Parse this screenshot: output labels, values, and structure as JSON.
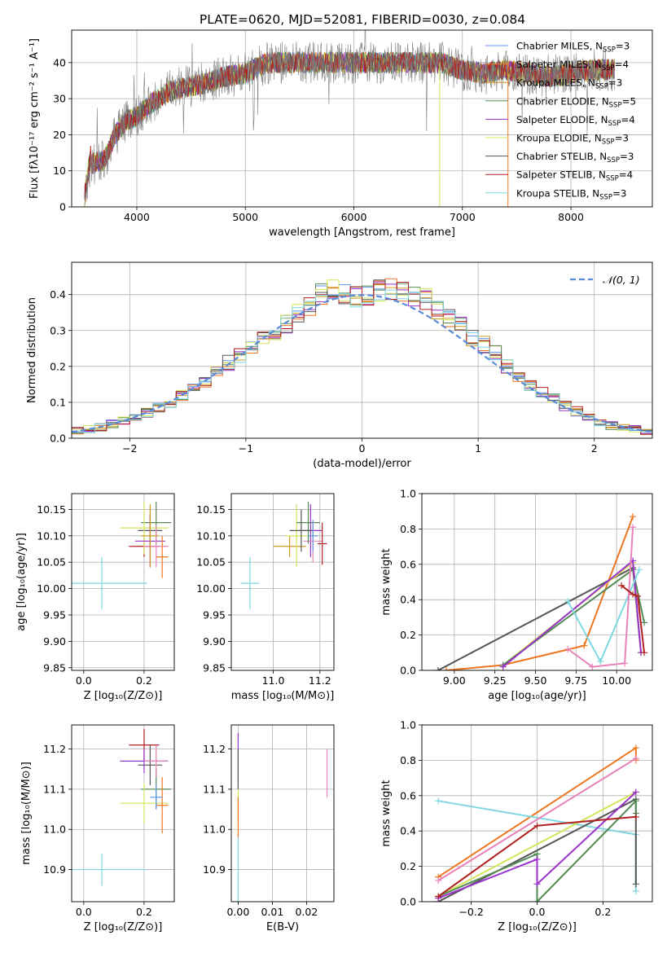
{
  "title": "PLATE=0620, MJD=52081, FIBERID=0030, z=0.084",
  "colors": {
    "Chabrier MILES": "#6495ed",
    "Salpeter MILES": "#ee7621",
    "Kroupa MILES": "#cd9b1d",
    "Chabrier ELODIE": "#548b54",
    "Salpeter ELODIE": "#9a32cd",
    "Kroupa ELODIE": "#d4e55a",
    "Chabrier STELIB": "#555555",
    "Salpeter STELIB": "#b22222",
    "Kroupa STELIB": "#7fd8e0",
    "Kroupa ELODIE pink": "#e882b8",
    "normal_curve": "#5b8bd8"
  },
  "chart_data": [
    {
      "id": "spectrum",
      "type": "line",
      "xlabel": "wavelength [Angstrom, rest frame]",
      "ylabel": "Flux [fλ10⁻¹⁷ erg cm⁻² s⁻¹ A⁻¹]",
      "xlim": [
        3400,
        8750
      ],
      "ylim": [
        0,
        49
      ],
      "xticks": [
        4000,
        5000,
        6000,
        7000,
        8000
      ],
      "yticks": [
        0,
        10,
        20,
        30,
        40
      ],
      "legend_location": "top-right",
      "series": [
        {
          "name": "Chabrier MILES, N_SSP=3",
          "label_main": "Chabrier MILES, N",
          "label_sub": "SSP",
          "label_end": "=3",
          "color": "#6495ed"
        },
        {
          "name": "Salpeter MILES, N_SSP=4",
          "label_main": "Salpeter MILES, N",
          "label_sub": "SSP",
          "label_end": "=4",
          "color": "#ee7621"
        },
        {
          "name": "Kroupa MILES, N_SSP=3",
          "label_main": "Kroupa MILES, N",
          "label_sub": "SSP",
          "label_end": "=3",
          "color": "#cd9b1d"
        },
        {
          "name": "Chabrier ELODIE, N_SSP=5",
          "label_main": "Chabrier ELODIE, N",
          "label_sub": "SSP",
          "label_end": "=5",
          "color": "#548b54"
        },
        {
          "name": "Salpeter ELODIE, N_SSP=4",
          "label_main": "Salpeter ELODIE, N",
          "label_sub": "SSP",
          "label_end": "=4",
          "color": "#9a32cd"
        },
        {
          "name": "Kroupa ELODIE, N_SSP=3",
          "label_main": "Kroupa ELODIE, N",
          "label_sub": "SSP",
          "label_end": "=3",
          "color": "#d4e55a"
        },
        {
          "name": "Chabrier STELIB, N_SSP=3",
          "label_main": "Chabrier STELIB, N",
          "label_sub": "SSP",
          "label_end": "=3",
          "color": "#555555"
        },
        {
          "name": "Salpeter STELIB, N_SSP=4",
          "label_main": "Salpeter STELIB, N",
          "label_sub": "SSP",
          "label_end": "=4",
          "color": "#b22222"
        },
        {
          "name": "Kroupa STELIB, N_SSP=3",
          "label_main": "Kroupa STELIB, N",
          "label_sub": "SSP",
          "label_end": "=3",
          "color": "#7fd8e0"
        }
      ],
      "data_envelope": [
        [
          3520,
          0
        ],
        [
          3580,
          12
        ],
        [
          3700,
          13
        ],
        [
          3800,
          20
        ],
        [
          3900,
          24
        ],
        [
          4000,
          25
        ],
        [
          4100,
          28
        ],
        [
          4200,
          30
        ],
        [
          4300,
          32
        ],
        [
          4400,
          33
        ],
        [
          4600,
          34
        ],
        [
          4800,
          36
        ],
        [
          5000,
          37
        ],
        [
          5200,
          40
        ],
        [
          5400,
          40
        ],
        [
          5600,
          40
        ],
        [
          5800,
          40
        ],
        [
          6000,
          40
        ],
        [
          6200,
          40
        ],
        [
          6400,
          40
        ],
        [
          6600,
          40
        ],
        [
          6800,
          40
        ],
        [
          7000,
          38
        ],
        [
          7200,
          37
        ],
        [
          7400,
          38
        ],
        [
          7600,
          37
        ],
        [
          7800,
          36
        ],
        [
          8000,
          37
        ],
        [
          8200,
          38
        ],
        [
          8400,
          38
        ]
      ]
    },
    {
      "id": "residuals",
      "type": "histogram",
      "xlabel": "(data-model)/error",
      "ylabel": "Normed distribution",
      "xlim": [
        -2.5,
        2.5
      ],
      "ylim": [
        0,
        0.49
      ],
      "xticks": [
        -2,
        -1,
        0,
        1,
        2
      ],
      "yticks": [
        0.0,
        0.1,
        0.2,
        0.3,
        0.4
      ],
      "legend_location": "top-right",
      "normal_curve": {
        "name": "𝒩(0, 1)",
        "mean": 0,
        "sigma": 1
      },
      "bin_edges_start": -2.5,
      "bin_width": 0.1,
      "mean_hist": [
        0.02,
        0.025,
        0.03,
        0.04,
        0.05,
        0.06,
        0.07,
        0.085,
        0.1,
        0.12,
        0.14,
        0.16,
        0.18,
        0.21,
        0.23,
        0.26,
        0.28,
        0.3,
        0.32,
        0.35,
        0.37,
        0.4,
        0.41,
        0.4,
        0.39,
        0.395,
        0.41,
        0.42,
        0.41,
        0.4,
        0.39,
        0.36,
        0.34,
        0.31,
        0.28,
        0.26,
        0.24,
        0.2,
        0.17,
        0.15,
        0.13,
        0.11,
        0.09,
        0.075,
        0.06,
        0.045,
        0.035,
        0.03,
        0.025,
        0.02
      ]
    },
    {
      "id": "age_vs_Z",
      "type": "errorbar",
      "xlabel": "Z [log₁₀(Z/Z⊙)]",
      "ylabel": "age  [log₁₀(age/yr)]",
      "xlim": [
        -0.04,
        0.3
      ],
      "ylim": [
        9.845,
        10.18
      ],
      "xticks": [
        0.0,
        0.2
      ],
      "yticks": [
        9.85,
        9.9,
        9.95,
        10.0,
        10.05,
        10.1,
        10.15
      ],
      "points": [
        {
          "x": 0.06,
          "y": 10.01,
          "xerr": 0.15,
          "yerr": 0.05,
          "color": "#7fd8e0"
        },
        {
          "x": 0.2,
          "y": 10.08,
          "xerr": 0.05,
          "yerr": 0.02,
          "color": "#b22222"
        },
        {
          "x": 0.22,
          "y": 10.11,
          "xerr": 0.04,
          "yerr": 0.03,
          "color": "#555555"
        },
        {
          "x": 0.24,
          "y": 10.125,
          "xerr": 0.05,
          "yerr": 0.04,
          "color": "#548b54"
        },
        {
          "x": 0.2,
          "y": 10.115,
          "xerr": 0.08,
          "yerr": 0.05,
          "color": "#d4e55a"
        },
        {
          "x": 0.22,
          "y": 10.09,
          "xerr": 0.05,
          "yerr": 0.05,
          "color": "#9a32cd"
        },
        {
          "x": 0.24,
          "y": 10.08,
          "xerr": 0.04,
          "yerr": 0.04,
          "color": "#e882b8"
        },
        {
          "x": 0.26,
          "y": 10.06,
          "xerr": 0.02,
          "yerr": 0.04,
          "color": "#ee7621"
        },
        {
          "x": 0.22,
          "y": 10.1,
          "xerr": 0.03,
          "yerr": 0.06,
          "color": "#cd9b1d"
        }
      ]
    },
    {
      "id": "age_vs_mass",
      "type": "errorbar",
      "xlabel": "mass [log₁₀(M/M⊙)]",
      "ylabel": "",
      "xlim": [
        10.82,
        11.26
      ],
      "ylim": [
        9.845,
        10.18
      ],
      "xticks": [
        11.0,
        11.2
      ],
      "yticks": [
        9.85,
        9.9,
        9.95,
        10.0,
        10.05,
        10.1,
        10.15
      ],
      "points": [
        {
          "x": 10.9,
          "y": 10.01,
          "xerr": 0.04,
          "yerr": 0.05,
          "color": "#7fd8e0"
        },
        {
          "x": 11.07,
          "y": 10.08,
          "xerr": 0.07,
          "yerr": 0.02,
          "color": "#cd9b1d"
        },
        {
          "x": 11.1,
          "y": 10.1,
          "xerr": 0.05,
          "yerr": 0.06,
          "color": "#d4e55a"
        },
        {
          "x": 11.16,
          "y": 10.11,
          "xerr": 0.05,
          "yerr": 0.05,
          "color": "#9a32cd"
        },
        {
          "x": 11.17,
          "y": 10.09,
          "xerr": 0.04,
          "yerr": 0.04,
          "color": "#e882b8"
        },
        {
          "x": 11.15,
          "y": 10.125,
          "xerr": 0.05,
          "yerr": 0.04,
          "color": "#548b54"
        },
        {
          "x": 11.12,
          "y": 10.11,
          "xerr": 0.05,
          "yerr": 0.04,
          "color": "#555555"
        },
        {
          "x": 11.21,
          "y": 10.085,
          "xerr": 0.02,
          "yerr": 0.04,
          "color": "#b22222"
        },
        {
          "x": 11.17,
          "y": 10.1,
          "xerr": 0.02,
          "yerr": 0.03,
          "color": "#6495ed"
        }
      ]
    },
    {
      "id": "mass_weight_vs_age",
      "type": "line",
      "xlabel": "age  [log₁₀(age/yr)]",
      "ylabel": "mass weight",
      "xlim": [
        8.8,
        10.22
      ],
      "ylim": [
        0,
        1.0
      ],
      "xticks": [
        9.0,
        9.25,
        9.5,
        9.75,
        10.0
      ],
      "yticks": [
        0.0,
        0.2,
        0.4,
        0.6,
        0.8,
        1.0
      ],
      "series": [
        {
          "color": "#555555",
          "x": [
            8.9,
            10.1,
            10.15
          ],
          "y": [
            0.0,
            0.58,
            0.1
          ]
        },
        {
          "color": "#ee7621",
          "x": [
            8.95,
            9.3,
            9.8,
            10.1
          ],
          "y": [
            0.0,
            0.03,
            0.14,
            0.87
          ]
        },
        {
          "color": "#d4e55a",
          "x": [
            9.3,
            10.1,
            10.15
          ],
          "y": [
            0.03,
            0.61,
            0.1
          ]
        },
        {
          "color": "#548b54",
          "x": [
            9.3,
            10.1,
            10.17
          ],
          "y": [
            0.03,
            0.57,
            0.27
          ]
        },
        {
          "color": "#9a32cd",
          "x": [
            9.3,
            10.1,
            10.15
          ],
          "y": [
            0.02,
            0.62,
            0.1
          ]
        },
        {
          "color": "#7fd8e0",
          "x": [
            9.7,
            9.9,
            10.14
          ],
          "y": [
            0.39,
            0.05,
            0.57
          ]
        },
        {
          "color": "#e882b8",
          "x": [
            9.7,
            9.85,
            10.05,
            10.1
          ],
          "y": [
            0.12,
            0.02,
            0.04,
            0.81
          ]
        },
        {
          "color": "#b22222",
          "x": [
            10.03,
            10.1,
            10.13,
            10.17
          ],
          "y": [
            0.48,
            0.43,
            0.42,
            0.1
          ]
        }
      ]
    },
    {
      "id": "mass_vs_Z",
      "type": "errorbar",
      "xlabel": "Z [log₁₀(Z/Z⊙)]",
      "ylabel": "mass [log₁₀(M/M⊙)]",
      "xlim": [
        -0.04,
        0.3
      ],
      "ylim": [
        10.82,
        11.26
      ],
      "xticks": [
        0.0,
        0.2
      ],
      "yticks": [
        10.9,
        11.0,
        11.1,
        11.2
      ],
      "points": [
        {
          "x": 0.06,
          "y": 10.9,
          "xerr": 0.15,
          "yerr": 0.04,
          "color": "#7fd8e0"
        },
        {
          "x": 0.2,
          "y": 11.21,
          "xerr": 0.05,
          "yerr": 0.04,
          "color": "#b22222"
        },
        {
          "x": 0.2,
          "y": 11.17,
          "xerr": 0.08,
          "yerr": 0.03,
          "color": "#9a32cd"
        },
        {
          "x": 0.22,
          "y": 11.16,
          "xerr": 0.04,
          "yerr": 0.05,
          "color": "#555555"
        },
        {
          "x": 0.24,
          "y": 11.1,
          "xerr": 0.05,
          "yerr": 0.05,
          "color": "#548b54"
        },
        {
          "x": 0.2,
          "y": 11.065,
          "xerr": 0.08,
          "yerr": 0.05,
          "color": "#d4e55a"
        },
        {
          "x": 0.24,
          "y": 11.17,
          "xerr": 0.04,
          "yerr": 0.04,
          "color": "#e882b8"
        },
        {
          "x": 0.26,
          "y": 11.06,
          "xerr": 0.02,
          "yerr": 0.07,
          "color": "#ee7621"
        },
        {
          "x": 0.24,
          "y": 11.08,
          "xerr": 0.02,
          "yerr": 0.03,
          "color": "#6495ed"
        }
      ]
    },
    {
      "id": "mass_vs_ebv",
      "type": "errorbar",
      "xlabel": "E(B-V)",
      "ylabel": "",
      "xlim": [
        -0.002,
        0.028
      ],
      "ylim": [
        10.82,
        11.26
      ],
      "xticks": [
        0.0,
        0.01,
        0.02
      ],
      "yticks": [
        10.9,
        11.0,
        11.1,
        11.2
      ],
      "points": [
        {
          "x": 0.0,
          "y": 10.9,
          "xerr": 0.0,
          "yerr": 0.08,
          "color": "#7fd8e0"
        },
        {
          "x": 0.0,
          "y": 11.18,
          "xerr": 0.0,
          "yerr": 0.06,
          "color": "#9a32cd"
        },
        {
          "x": 0.0,
          "y": 11.15,
          "xerr": 0.0,
          "yerr": 0.05,
          "color": "#555555"
        },
        {
          "x": 0.0,
          "y": 11.06,
          "xerr": 0.0,
          "yerr": 0.04,
          "color": "#d4e55a"
        },
        {
          "x": 0.0,
          "y": 11.03,
          "xerr": 0.0,
          "yerr": 0.05,
          "color": "#ee7621"
        },
        {
          "x": 0.026,
          "y": 11.14,
          "xerr": 0.0,
          "yerr": 0.06,
          "color": "#e882b8"
        }
      ]
    },
    {
      "id": "mass_weight_vs_Z",
      "type": "line",
      "xlabel": "Z [log₁₀(Z/Z⊙)]",
      "ylabel": "mass weight",
      "xlim": [
        -0.35,
        0.35
      ],
      "ylim": [
        0,
        1.0
      ],
      "xticks": [
        -0.2,
        0.0,
        0.2
      ],
      "yticks": [
        0.0,
        0.2,
        0.4,
        0.6,
        0.8,
        1.0
      ],
      "series": [
        {
          "color": "#ee7621",
          "x": [
            -0.3,
            0.3,
            0.3
          ],
          "y": [
            0.14,
            0.87,
            0.8
          ]
        },
        {
          "color": "#7fd8e0",
          "x": [
            -0.3,
            0.3,
            0.3
          ],
          "y": [
            0.57,
            0.38,
            0.06
          ]
        },
        {
          "color": "#d4e55a",
          "x": [
            -0.3,
            0.3
          ],
          "y": [
            0.03,
            0.62
          ]
        },
        {
          "color": "#555555",
          "x": [
            -0.3,
            0.3,
            0.3
          ],
          "y": [
            0.0,
            0.58,
            0.1
          ]
        },
        {
          "color": "#548b54",
          "x": [
            -0.3,
            0.0,
            0.0,
            0.3,
            0.3
          ],
          "y": [
            0.03,
            0.27,
            0.0,
            0.57,
            0.5
          ]
        },
        {
          "color": "#9a32cd",
          "x": [
            -0.3,
            0.0,
            0.0,
            0.3
          ],
          "y": [
            0.02,
            0.24,
            0.1,
            0.62
          ]
        },
        {
          "color": "#b22222",
          "x": [
            -0.3,
            0.0,
            0.3
          ],
          "y": [
            0.03,
            0.43,
            0.48
          ]
        },
        {
          "color": "#e882b8",
          "x": [
            -0.3,
            0.3
          ],
          "y": [
            0.12,
            0.81
          ]
        }
      ]
    }
  ]
}
